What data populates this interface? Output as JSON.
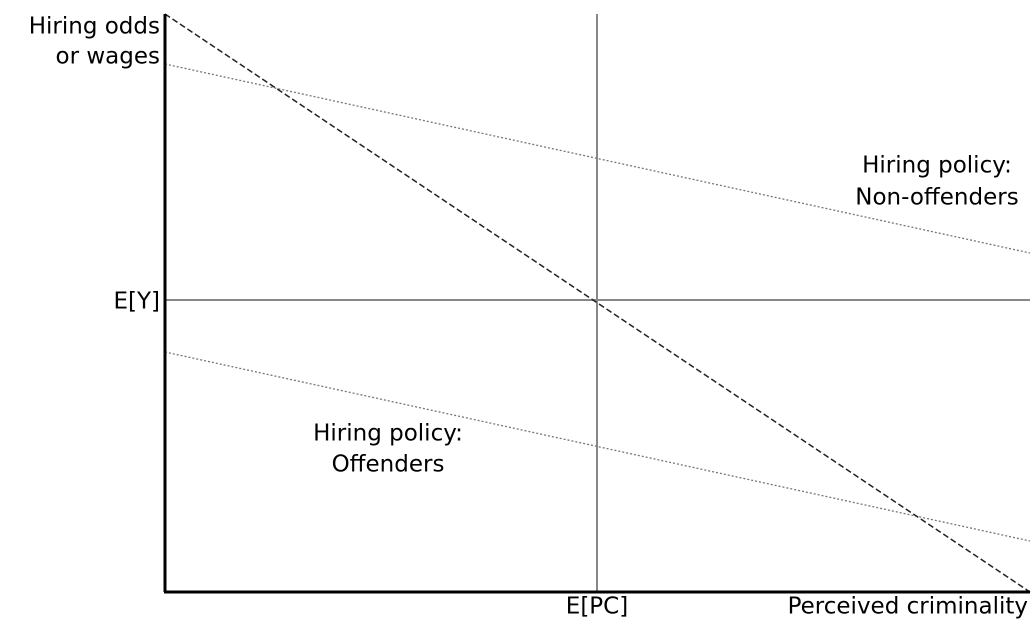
{
  "y_axis_label": [
    "Hiring odds",
    "or wages"
  ],
  "x_axis_label": "Perceived criminality",
  "y_marker": "E[Y]",
  "x_marker": "E[PC]",
  "curves": [
    {
      "label": [
        "Hiring policy:",
        "Non-offenders"
      ]
    },
    {
      "label": [
        "Hiring policy:",
        "Offenders"
      ]
    }
  ]
}
